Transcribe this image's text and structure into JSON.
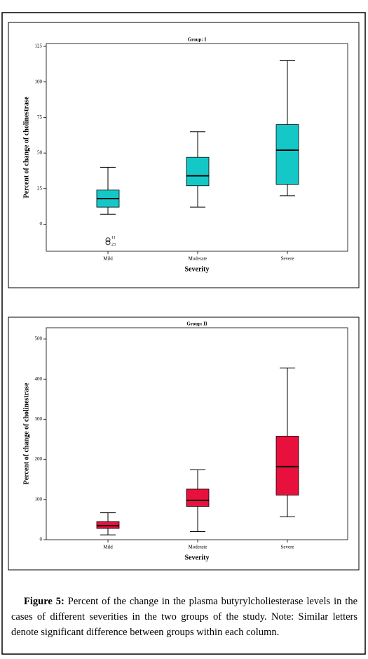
{
  "chart_data": [
    {
      "type": "box",
      "title": "Group: I",
      "x_label": "Severity",
      "y_label": "Percent of change of cholinestrase",
      "categories": [
        "Mild",
        "Moderate",
        "Severe"
      ],
      "color": "#14c8c8",
      "min": [
        7,
        12,
        20
      ],
      "q1": [
        12,
        27,
        28
      ],
      "median": [
        18,
        34,
        52
      ],
      "q3": [
        24,
        47,
        70
      ],
      "max": [
        40,
        65,
        115
      ],
      "outliers": [
        {
          "category": "Mild",
          "value": -11,
          "label": "11"
        },
        {
          "category": "Mild",
          "value": -13,
          "label": "23"
        }
      ],
      "ylim": [
        -19,
        127
      ],
      "yticks": [
        0,
        25,
        50,
        75,
        100,
        125
      ]
    },
    {
      "type": "box",
      "title": "Group: II",
      "x_label": "Severity",
      "y_label": "Percent of change of cholinestrase",
      "categories": [
        "Mild",
        "Moderate",
        "Severe"
      ],
      "color": "#e8103c",
      "min": [
        12,
        20,
        57
      ],
      "q1": [
        28,
        83,
        111
      ],
      "median": [
        35,
        98,
        182
      ],
      "q3": [
        45,
        126,
        258
      ],
      "max": [
        67,
        174,
        428
      ],
      "ylim": [
        0,
        528
      ],
      "yticks": [
        0,
        100,
        200,
        300,
        400,
        500
      ]
    }
  ],
  "caption": {
    "label": "Figure 5:",
    "text": "Percent of the change in the plasma butyrylcholiesterase levels in the cases of different severities in the two groups of the study. Note: Similar letters denote significant difference between groups within each column."
  }
}
